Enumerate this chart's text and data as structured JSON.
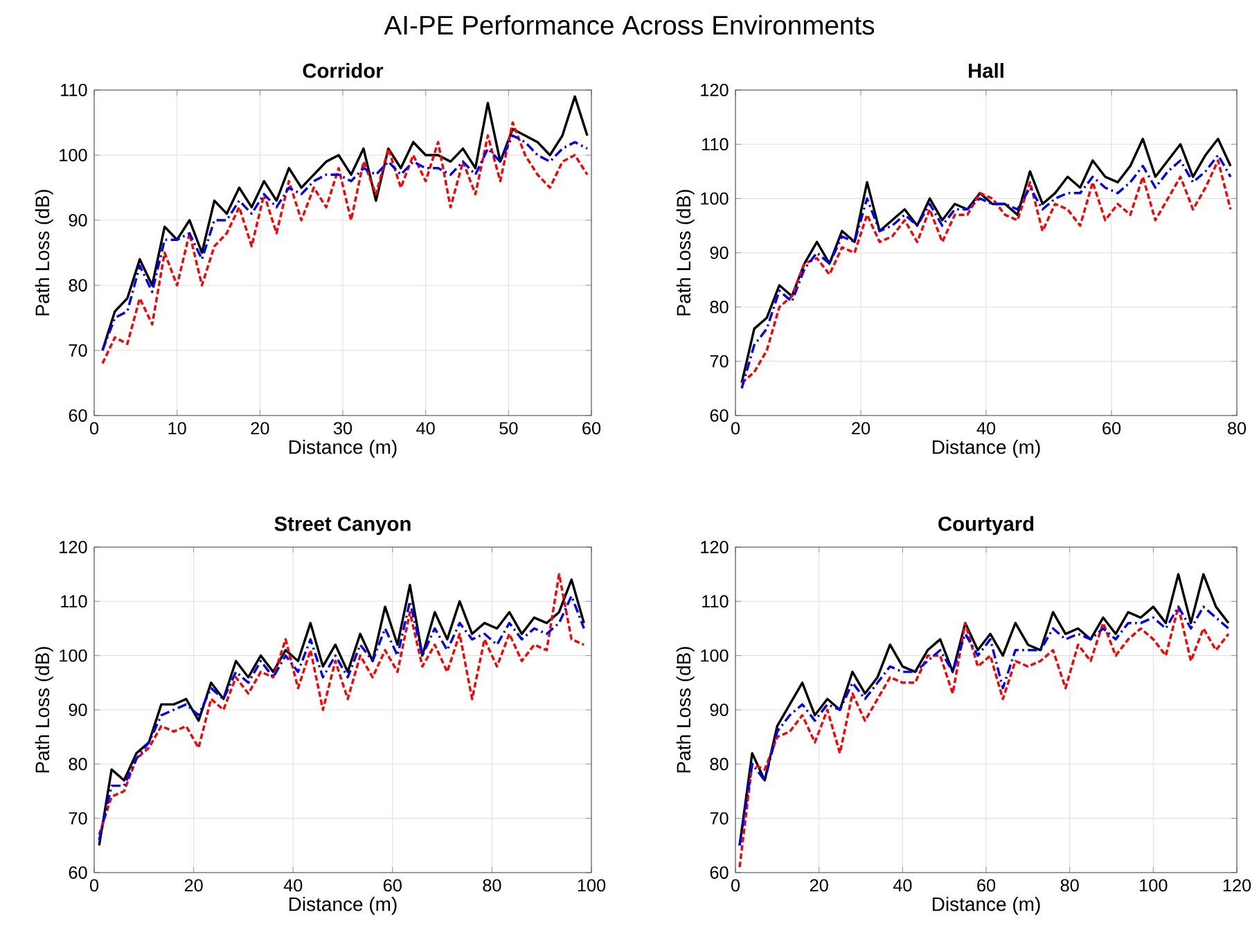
{
  "chart_data": [
    {
      "type": "line",
      "title": "Corridor",
      "xlabel": "Distance (m)",
      "ylabel": "Path Loss (dB)",
      "annotations": [
        "AI-PE Performance Across Environments"
      ],
      "grid": true,
      "marker": "none",
      "xlim": [
        0,
        60
      ],
      "ylim": [
        60,
        110
      ],
      "xticks": [
        0,
        10,
        20,
        30,
        40,
        50,
        60
      ],
      "yticks": [
        60,
        70,
        80,
        90,
        100,
        110
      ],
      "x": [
        1,
        2.5,
        4,
        5.5,
        7,
        8.5,
        10,
        11.5,
        13,
        14.5,
        16,
        17.5,
        19,
        20.5,
        22,
        23.5,
        25,
        26.5,
        28,
        29.5,
        31,
        32.5,
        34,
        35.5,
        37,
        38.5,
        40,
        41.5,
        43,
        44.5,
        46,
        47.5,
        49,
        50.5,
        52,
        53.5,
        55,
        56.5,
        58,
        59.5
      ],
      "series": [
        {
          "color": "#000000",
          "line_style": "solid",
          "values": [
            70,
            76,
            78,
            84,
            80,
            89,
            87,
            90,
            85,
            93,
            91,
            95,
            92,
            96,
            93,
            98,
            95,
            97,
            99,
            100,
            97,
            101,
            93,
            101,
            98,
            102,
            100,
            100,
            99,
            101,
            98,
            108,
            99,
            104,
            103,
            102,
            100,
            103,
            109,
            103
          ]
        },
        {
          "color": "#ff0000",
          "line_style": "dashed",
          "values": [
            68,
            72,
            71,
            78,
            74,
            85,
            80,
            88,
            80,
            86,
            88,
            92,
            86,
            94,
            88,
            96,
            90,
            95,
            92,
            98,
            90,
            99,
            94,
            101,
            95,
            100,
            96,
            102,
            92,
            99,
            94,
            103,
            96,
            105,
            100,
            97,
            95,
            99,
            100,
            97
          ]
        },
        {
          "color": "#0000ff",
          "line_style": "dotted",
          "values": [
            70,
            75,
            76,
            83,
            79,
            87,
            87,
            88,
            84,
            90,
            90,
            93,
            91,
            94,
            92,
            95,
            94,
            96,
            97,
            97,
            96,
            98,
            97,
            99,
            97,
            99,
            98,
            98,
            97,
            99,
            97,
            101,
            99,
            103,
            102,
            100,
            99,
            101,
            102,
            101
          ]
        }
      ]
    },
    {
      "type": "line",
      "title": "Hall",
      "xlabel": "Distance (m)",
      "ylabel": "Path Loss (dB)",
      "grid": true,
      "marker": "none",
      "xlim": [
        0,
        80
      ],
      "ylim": [
        60,
        120
      ],
      "xticks": [
        0,
        20,
        40,
        60,
        80
      ],
      "yticks": [
        60,
        70,
        80,
        90,
        100,
        110,
        120
      ],
      "x": [
        1,
        3,
        5,
        7,
        9,
        11,
        13,
        15,
        17,
        19,
        21,
        23,
        25,
        27,
        29,
        31,
        33,
        35,
        37,
        39,
        41,
        43,
        45,
        47,
        49,
        51,
        53,
        55,
        57,
        59,
        61,
        63,
        65,
        67,
        69,
        71,
        73,
        75,
        77,
        79
      ],
      "series": [
        {
          "color": "#000000",
          "line_style": "solid",
          "values": [
            66,
            76,
            78,
            84,
            82,
            88,
            92,
            88,
            94,
            92,
            103,
            94,
            96,
            98,
            95,
            100,
            96,
            99,
            98,
            101,
            99,
            99,
            97,
            105,
            99,
            101,
            104,
            102,
            107,
            104,
            103,
            106,
            111,
            104,
            107,
            110,
            104,
            108,
            111,
            106
          ]
        },
        {
          "color": "#ff0000",
          "line_style": "dashed",
          "values": [
            66,
            68,
            72,
            80,
            82,
            88,
            89,
            86,
            91,
            90,
            97,
            92,
            93,
            96,
            92,
            98,
            92,
            97,
            97,
            101,
            100,
            97,
            96,
            103,
            94,
            99,
            98,
            95,
            103,
            96,
            99,
            97,
            104,
            96,
            100,
            104,
            98,
            102,
            107,
            98
          ]
        },
        {
          "color": "#0000ff",
          "line_style": "dotted",
          "values": [
            65,
            73,
            76,
            83,
            81,
            87,
            90,
            88,
            93,
            92,
            100,
            94,
            95,
            97,
            95,
            99,
            95,
            98,
            98,
            100,
            99,
            99,
            98,
            102,
            98,
            100,
            101,
            101,
            104,
            102,
            101,
            103,
            106,
            102,
            105,
            107,
            103,
            105,
            108,
            104
          ]
        }
      ]
    },
    {
      "type": "line",
      "title": "Street Canyon",
      "xlabel": "Distance (m)",
      "ylabel": "Path Loss (dB)",
      "grid": true,
      "marker": "none",
      "xlim": [
        0,
        100
      ],
      "ylim": [
        60,
        120
      ],
      "xticks": [
        0,
        20,
        40,
        60,
        80,
        100
      ],
      "yticks": [
        60,
        70,
        80,
        90,
        100,
        110,
        120
      ],
      "x": [
        1,
        3.5,
        6,
        8.5,
        11,
        13.5,
        16,
        18.5,
        21,
        23.5,
        26,
        28.5,
        31,
        33.5,
        36,
        38.5,
        41,
        43.5,
        46,
        48.5,
        51,
        53.5,
        56,
        58.5,
        61,
        63.5,
        66,
        68.5,
        71,
        73.5,
        76,
        78.5,
        81,
        83.5,
        86,
        88.5,
        91,
        93.5,
        96,
        98.5
      ],
      "series": [
        {
          "color": "#000000",
          "line_style": "solid",
          "values": [
            65,
            79,
            77,
            82,
            84,
            91,
            91,
            92,
            88,
            95,
            92,
            99,
            96,
            100,
            97,
            101,
            99,
            106,
            98,
            102,
            97,
            104,
            99,
            109,
            102,
            113,
            100,
            108,
            103,
            110,
            104,
            106,
            105,
            108,
            104,
            107,
            106,
            108,
            114,
            106
          ]
        },
        {
          "color": "#ff0000",
          "line_style": "dashed",
          "values": [
            67,
            74,
            75,
            81,
            83,
            87,
            86,
            87,
            83,
            92,
            90,
            96,
            93,
            97,
            96,
            103,
            94,
            101,
            90,
            99,
            92,
            100,
            96,
            101,
            97,
            108,
            98,
            102,
            97,
            104,
            92,
            103,
            98,
            104,
            99,
            102,
            101,
            115,
            103,
            102
          ]
        },
        {
          "color": "#0000ff",
          "line_style": "dotted",
          "values": [
            66,
            76,
            76,
            81,
            84,
            89,
            90,
            91,
            89,
            94,
            92,
            97,
            95,
            99,
            96,
            100,
            97,
            103,
            96,
            100,
            96,
            102,
            99,
            105,
            100,
            110,
            100,
            105,
            101,
            106,
            103,
            104,
            102,
            106,
            103,
            105,
            104,
            106,
            111,
            105
          ]
        }
      ]
    },
    {
      "type": "line",
      "title": "Courtyard",
      "xlabel": "Distance (m)",
      "ylabel": "Path Loss (dB)",
      "grid": true,
      "marker": "none",
      "xlim": [
        0,
        120
      ],
      "ylim": [
        60,
        120
      ],
      "xticks": [
        0,
        20,
        40,
        60,
        80,
        100,
        120
      ],
      "yticks": [
        60,
        70,
        80,
        90,
        100,
        110,
        120
      ],
      "x": [
        1,
        4,
        7,
        10,
        13,
        16,
        19,
        22,
        25,
        28,
        31,
        34,
        37,
        40,
        43,
        46,
        49,
        52,
        55,
        58,
        61,
        64,
        67,
        70,
        73,
        76,
        79,
        82,
        85,
        88,
        91,
        94,
        97,
        100,
        103,
        106,
        109,
        112,
        115,
        118
      ],
      "series": [
        {
          "color": "#000000",
          "line_style": "solid",
          "values": [
            65,
            82,
            77,
            87,
            91,
            95,
            89,
            92,
            90,
            97,
            93,
            96,
            102,
            98,
            97,
            101,
            103,
            97,
            106,
            101,
            104,
            100,
            106,
            102,
            101,
            108,
            104,
            105,
            103,
            107,
            104,
            108,
            107,
            109,
            106,
            115,
            106,
            115,
            109,
            106
          ]
        },
        {
          "color": "#ff0000",
          "line_style": "dashed",
          "values": [
            61,
            80,
            79,
            85,
            86,
            89,
            84,
            90,
            82,
            93,
            88,
            92,
            96,
            95,
            95,
            100,
            100,
            93,
            106,
            98,
            100,
            92,
            99,
            98,
            99,
            101,
            94,
            102,
            99,
            106,
            100,
            103,
            105,
            103,
            100,
            109,
            99,
            105,
            101,
            104
          ]
        },
        {
          "color": "#0000ff",
          "line_style": "dotted",
          "values": [
            65,
            80,
            77,
            86,
            89,
            91,
            88,
            91,
            90,
            95,
            92,
            95,
            98,
            97,
            97,
            99,
            101,
            97,
            104,
            100,
            103,
            94,
            101,
            101,
            101,
            105,
            103,
            104,
            103,
            105,
            103,
            106,
            106,
            107,
            105,
            109,
            105,
            109,
            107,
            105
          ]
        }
      ]
    }
  ]
}
